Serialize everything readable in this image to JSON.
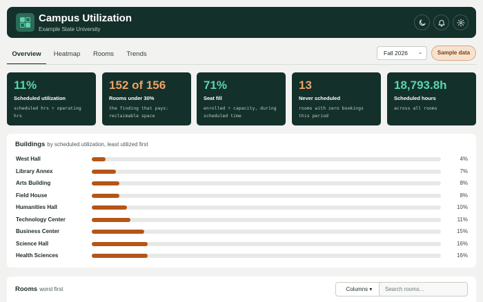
{
  "header": {
    "title": "Campus Utilization",
    "subtitle": "Example State University",
    "icons": [
      "moon-icon",
      "bell-icon",
      "gear-icon"
    ]
  },
  "tabs": [
    {
      "label": "Overview",
      "active": true
    },
    {
      "label": "Heatmap",
      "active": false
    },
    {
      "label": "Rooms",
      "active": false
    },
    {
      "label": "Trends",
      "active": false
    }
  ],
  "term_select": {
    "value": "Fall 2026"
  },
  "sample_button": {
    "label": "Sample data"
  },
  "kpis": [
    {
      "value": "11%",
      "label": "Scheduled utilization",
      "sub": "scheduled hrs ÷ operating hrs",
      "accent": "#58d6ac"
    },
    {
      "value": "152 of 156",
      "label": "Rooms under 30%",
      "sub": "the finding that pays: reclaimable space",
      "accent": "#eca365"
    },
    {
      "value": "71%",
      "label": "Seat fill",
      "sub": "enrolled ÷ capacity, during scheduled time",
      "accent": "#58d6ac"
    },
    {
      "value": "13",
      "label": "Never scheduled",
      "sub": "rooms with zero bookings this period",
      "accent": "#eca365"
    },
    {
      "value": "18,793.8h",
      "label": "Scheduled hours",
      "sub": "across all rooms",
      "accent": "#58d6ac"
    }
  ],
  "buildings": {
    "title": "Buildings",
    "subtitle": "by scheduled utilization, least utilized first",
    "bar_color": "#b55516",
    "rows": [
      {
        "name": "West Hall",
        "pct": "4%",
        "value": 4
      },
      {
        "name": "Library Annex",
        "pct": "7%",
        "value": 7
      },
      {
        "name": "Arts Building",
        "pct": "8%",
        "value": 8
      },
      {
        "name": "Field House",
        "pct": "8%",
        "value": 8
      },
      {
        "name": "Humanities Hall",
        "pct": "10%",
        "value": 10
      },
      {
        "name": "Technology Center",
        "pct": "11%",
        "value": 11
      },
      {
        "name": "Business Center",
        "pct": "15%",
        "value": 15
      },
      {
        "name": "Science Hall",
        "pct": "16%",
        "value": 16
      },
      {
        "name": "Health Sciences",
        "pct": "16%",
        "value": 16
      }
    ]
  },
  "rooms": {
    "title": "Rooms",
    "subtitle": "worst first",
    "columns_label": "Columns",
    "search_placeholder": "Search rooms..."
  },
  "colors": {
    "header_bg": "#14302a",
    "accent_teal": "#58d6ac",
    "accent_orange": "#eca365"
  }
}
